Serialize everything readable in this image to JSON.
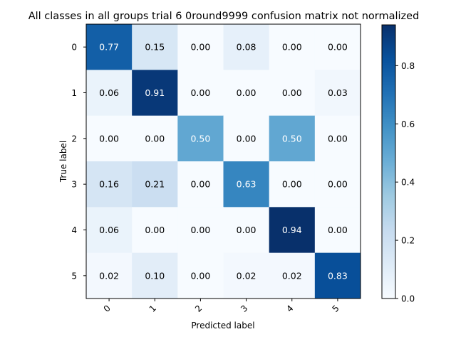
{
  "chart_data": {
    "type": "heatmap",
    "title": "All classes in all groups trial 6 0round9999 confusion matrix not normalized",
    "xlabel": "Predicted label",
    "ylabel": "True label",
    "x_categories": [
      "0",
      "1",
      "2",
      "3",
      "4",
      "5"
    ],
    "y_categories": [
      "0",
      "1",
      "2",
      "3",
      "4",
      "5"
    ],
    "values": [
      [
        0.77,
        0.15,
        0.0,
        0.08,
        0.0,
        0.0
      ],
      [
        0.06,
        0.91,
        0.0,
        0.0,
        0.0,
        0.03
      ],
      [
        0.0,
        0.0,
        0.5,
        0.0,
        0.5,
        0.0
      ],
      [
        0.16,
        0.21,
        0.0,
        0.63,
        0.0,
        0.0
      ],
      [
        0.06,
        0.0,
        0.0,
        0.0,
        0.94,
        0.0
      ],
      [
        0.02,
        0.1,
        0.0,
        0.02,
        0.02,
        0.83
      ]
    ],
    "value_format": "0.00",
    "colormap": "Blues",
    "colorbar": {
      "range": [
        0,
        0.94
      ],
      "ticks": [
        0.0,
        0.2,
        0.4,
        0.6,
        0.8
      ],
      "tick_labels": [
        "0.0",
        "0.2",
        "0.4",
        "0.6",
        "0.8"
      ]
    },
    "text_color_threshold": 0.47,
    "text_color_dark": "#000000",
    "text_color_light": "#ffffff"
  }
}
